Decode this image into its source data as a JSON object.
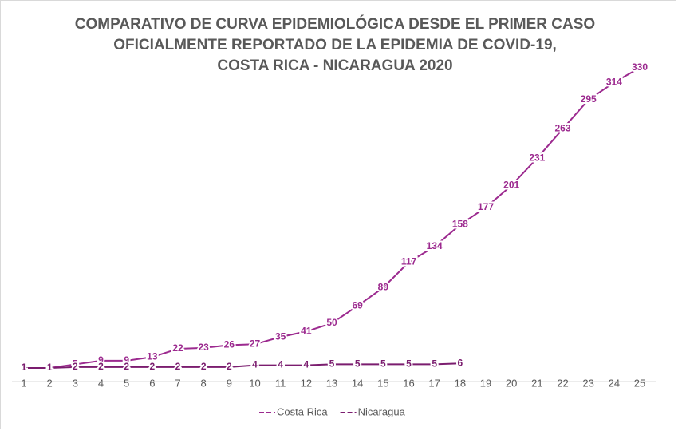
{
  "chart_data": {
    "type": "line",
    "title": [
      "COMPARATIVO DE CURVA EPIDEMIOLÓGICA DESDE EL PRIMER CASO",
      "OFICIALMENTE REPORTADO DE LA EPIDEMIA DE COVID-19,",
      "COSTA RICA - NICARAGUA 2020"
    ],
    "x": [
      1,
      2,
      3,
      4,
      5,
      6,
      7,
      8,
      9,
      10,
      11,
      12,
      13,
      14,
      15,
      16,
      17,
      18,
      19,
      20,
      21,
      22,
      23,
      24,
      25
    ],
    "series": [
      {
        "name": "Costa Rica",
        "color": "#9c2a8f",
        "values": [
          1,
          1,
          5,
          9,
          9,
          13,
          22,
          23,
          26,
          27,
          35,
          41,
          50,
          69,
          89,
          117,
          134,
          158,
          177,
          201,
          231,
          263,
          295,
          314,
          330
        ]
      },
      {
        "name": "Nicaragua",
        "color": "#7b1d6f",
        "values": [
          1,
          1,
          2,
          2,
          2,
          2,
          2,
          2,
          2,
          4,
          4,
          4,
          5,
          5,
          5,
          5,
          5,
          6,
          null,
          null,
          null,
          null,
          null,
          null,
          null
        ]
      }
    ],
    "legend": "bottom"
  }
}
